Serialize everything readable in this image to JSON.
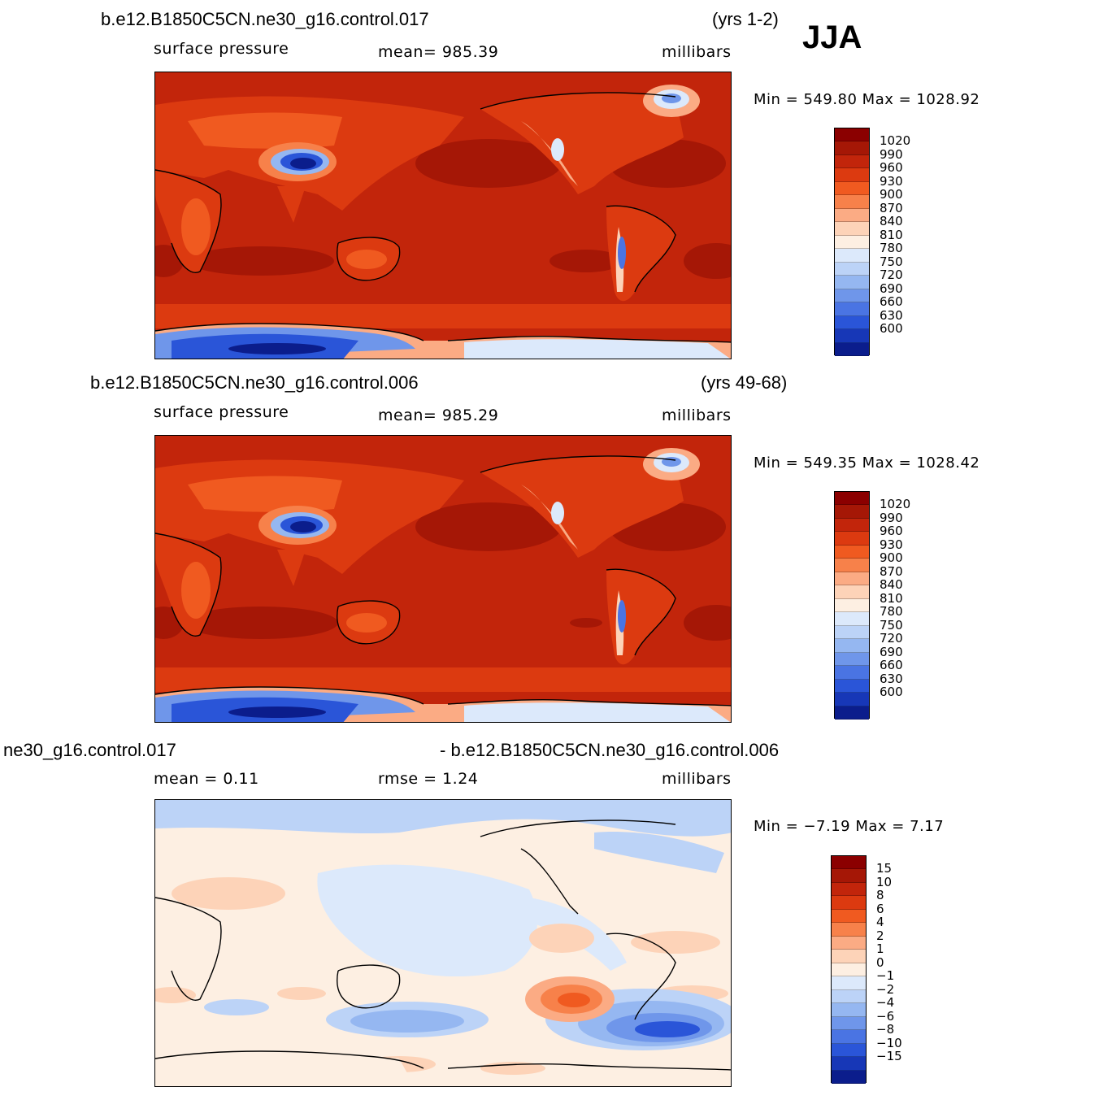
{
  "season": "JJA",
  "panels": [
    {
      "case": "b.e12.B1850C5CN.ne30_g16.control.017",
      "years": "(yrs 1-2)",
      "left_label": "surface pressure",
      "center_label": "mean=  985.39",
      "units": "millibars",
      "minmax": "Min  =  549.80  Max  =  1028.92",
      "legend_labels": [
        "1020",
        "990",
        "960",
        "930",
        "900",
        "870",
        "840",
        "810",
        "780",
        "750",
        "720",
        "690",
        "660",
        "630",
        "600"
      ],
      "legend_colors": [
        "#8b0000",
        "#a51706",
        "#c2250b",
        "#dc3a10",
        "#f05a20",
        "#f7814a",
        "#fbab84",
        "#fdd3b8",
        "#fdefe2",
        "#dce9fb",
        "#bcd3f7",
        "#95b7f1",
        "#6f96ea",
        "#4a74e3",
        "#2a55d8",
        "#1737b7",
        "#0b1d8c"
      ]
    },
    {
      "case": "b.e12.B1850C5CN.ne30_g16.control.006",
      "years": "(yrs 49-68)",
      "left_label": "surface pressure",
      "center_label": "mean=  985.29",
      "units": "millibars",
      "minmax": "Min  =  549.35  Max  =  1028.42",
      "legend_labels": [
        "1020",
        "990",
        "960",
        "930",
        "900",
        "870",
        "840",
        "810",
        "780",
        "750",
        "720",
        "690",
        "660",
        "630",
        "600"
      ],
      "legend_colors": [
        "#8b0000",
        "#a51706",
        "#c2250b",
        "#dc3a10",
        "#f05a20",
        "#f7814a",
        "#fbab84",
        "#fdd3b8",
        "#fdefe2",
        "#dce9fb",
        "#bcd3f7",
        "#95b7f1",
        "#6f96ea",
        "#4a74e3",
        "#2a55d8",
        "#1737b7",
        "#0b1d8c"
      ]
    },
    {
      "case_left": "ne30_g16.control.017",
      "case_right": "- b.e12.B1850C5CN.ne30_g16.control.006",
      "left_label": "mean  =     0.11",
      "center_label": "rmse  =     1.24",
      "units": "millibars",
      "minmax": "Min  =   −7.19  Max  =     7.17",
      "legend_labels": [
        "15",
        "10",
        "8",
        "6",
        "4",
        "2",
        "1",
        "0",
        "−1",
        "−2",
        "−4",
        "−6",
        "−8",
        "−10",
        "−15"
      ],
      "legend_colors": [
        "#8b0000",
        "#a51706",
        "#c2250b",
        "#dc3a10",
        "#f05a20",
        "#f7814a",
        "#fbab84",
        "#fdd3b8",
        "#fdefe2",
        "#dce9fb",
        "#bcd3f7",
        "#95b7f1",
        "#6f96ea",
        "#4a74e3",
        "#2a55d8",
        "#1737b7",
        "#0b1d8c"
      ]
    }
  ]
}
